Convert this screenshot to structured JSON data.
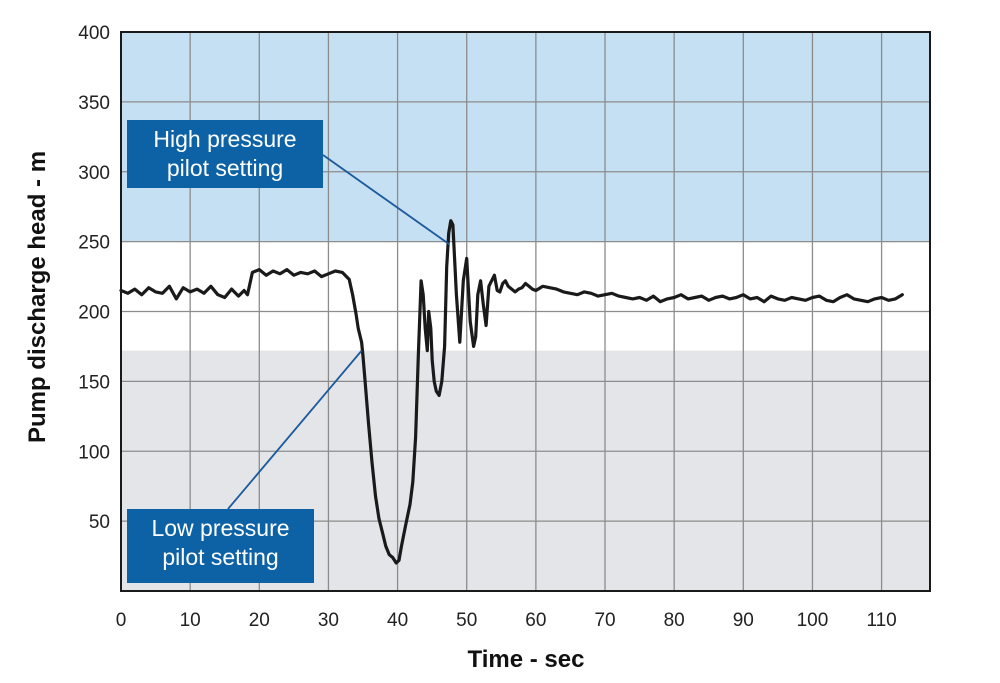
{
  "chart_data": {
    "type": "line",
    "title": "",
    "xlabel": "Time - sec",
    "ylabel": "Pump discharge head - m",
    "xlim": [
      0,
      117
    ],
    "ylim": [
      0,
      400
    ],
    "x_ticks": [
      0,
      10,
      20,
      30,
      40,
      50,
      60,
      70,
      80,
      90,
      100,
      110
    ],
    "y_ticks": [
      50,
      100,
      150,
      200,
      250,
      300,
      350,
      400
    ],
    "grid": true,
    "bands": [
      {
        "label": "High pressure pilot setting region",
        "from": 250,
        "to": 400,
        "color": "#c5dff3"
      },
      {
        "label": "Low pressure pilot setting region",
        "from": 0,
        "to": 172,
        "color": "#e4e5e8"
      }
    ],
    "annotations": [
      {
        "lines": [
          "High pressure",
          "pilot setting"
        ],
        "points_to": [
          47.5,
          248
        ]
      },
      {
        "lines": [
          "Low pressure",
          "pilot setting"
        ],
        "points_to": [
          34.8,
          172
        ]
      }
    ],
    "series": [
      {
        "color": "#1a1a1a",
        "x": [
          0,
          1,
          2,
          3,
          4,
          5,
          6,
          7,
          8,
          9,
          10,
          11,
          12,
          13,
          14,
          15,
          16,
          17,
          17.8,
          18.3,
          19,
          20,
          21,
          22,
          23,
          24,
          25,
          26,
          27,
          28,
          29,
          30,
          31,
          32,
          33,
          33.5,
          34,
          34.3,
          34.8,
          35,
          35.3,
          35.8,
          36.3,
          36.8,
          37.3,
          37.8,
          38.3,
          38.8,
          39.3,
          39.8,
          40.2,
          40.6,
          41.2,
          41.8,
          42.2,
          42.6,
          43.0,
          43.4,
          43.7,
          44.0,
          44.3,
          44.5,
          44.8,
          45.0,
          45.3,
          45.6,
          46.0,
          46.4,
          46.8,
          47.1,
          47.4,
          47.7,
          48.0,
          48.5,
          49.0,
          49.5,
          50.0,
          50.5,
          51.0,
          51.3,
          51.6,
          52.0,
          52.4,
          52.8,
          53.2,
          53.6,
          54.0,
          54.4,
          54.8,
          55.2,
          55.6,
          56.0,
          56.5,
          57.0,
          57.5,
          58.0,
          58.5,
          59.0,
          59.5,
          60.0,
          61,
          62,
          63,
          64,
          65,
          66,
          67,
          68,
          69,
          70,
          71,
          72,
          73,
          74,
          75,
          76,
          77,
          78,
          79,
          80,
          81,
          82,
          83,
          84,
          85,
          86,
          87,
          88,
          89,
          90,
          91,
          92,
          93,
          94,
          95,
          96,
          97,
          98,
          99,
          100,
          101,
          102,
          103,
          104,
          105,
          106,
          107,
          108,
          109,
          110,
          111,
          112,
          113
        ],
        "values": [
          215,
          213,
          216,
          212,
          217,
          214,
          213,
          218,
          209,
          217,
          214,
          216,
          213,
          218,
          212,
          210,
          216,
          211,
          215,
          212,
          228,
          230,
          226,
          229,
          227,
          230,
          226,
          228,
          227,
          229,
          225,
          227,
          229,
          228,
          223,
          212,
          198,
          188,
          178,
          168,
          150,
          120,
          92,
          68,
          52,
          42,
          32,
          26,
          24,
          20,
          22,
          33,
          48,
          62,
          78,
          110,
          168,
          222,
          212,
          188,
          172,
          200,
          188,
          165,
          150,
          143,
          140,
          150,
          175,
          232,
          256,
          265,
          262,
          212,
          178,
          222,
          238,
          193,
          175,
          182,
          212,
          222,
          205,
          190,
          218,
          222,
          226,
          215,
          214,
          220,
          222,
          218,
          216,
          214,
          216,
          217,
          220,
          218,
          216,
          215,
          218,
          217,
          216,
          214,
          213,
          212,
          214,
          213,
          211,
          212,
          213,
          211,
          210,
          209,
          210,
          208,
          211,
          207,
          209,
          210,
          212,
          209,
          210,
          211,
          208,
          210,
          211,
          209,
          210,
          212,
          209,
          210,
          207,
          211,
          209,
          208,
          210,
          209,
          208,
          210,
          211,
          208,
          207,
          210,
          212,
          209,
          208,
          207,
          209,
          210,
          208,
          209,
          212
        ]
      }
    ]
  }
}
